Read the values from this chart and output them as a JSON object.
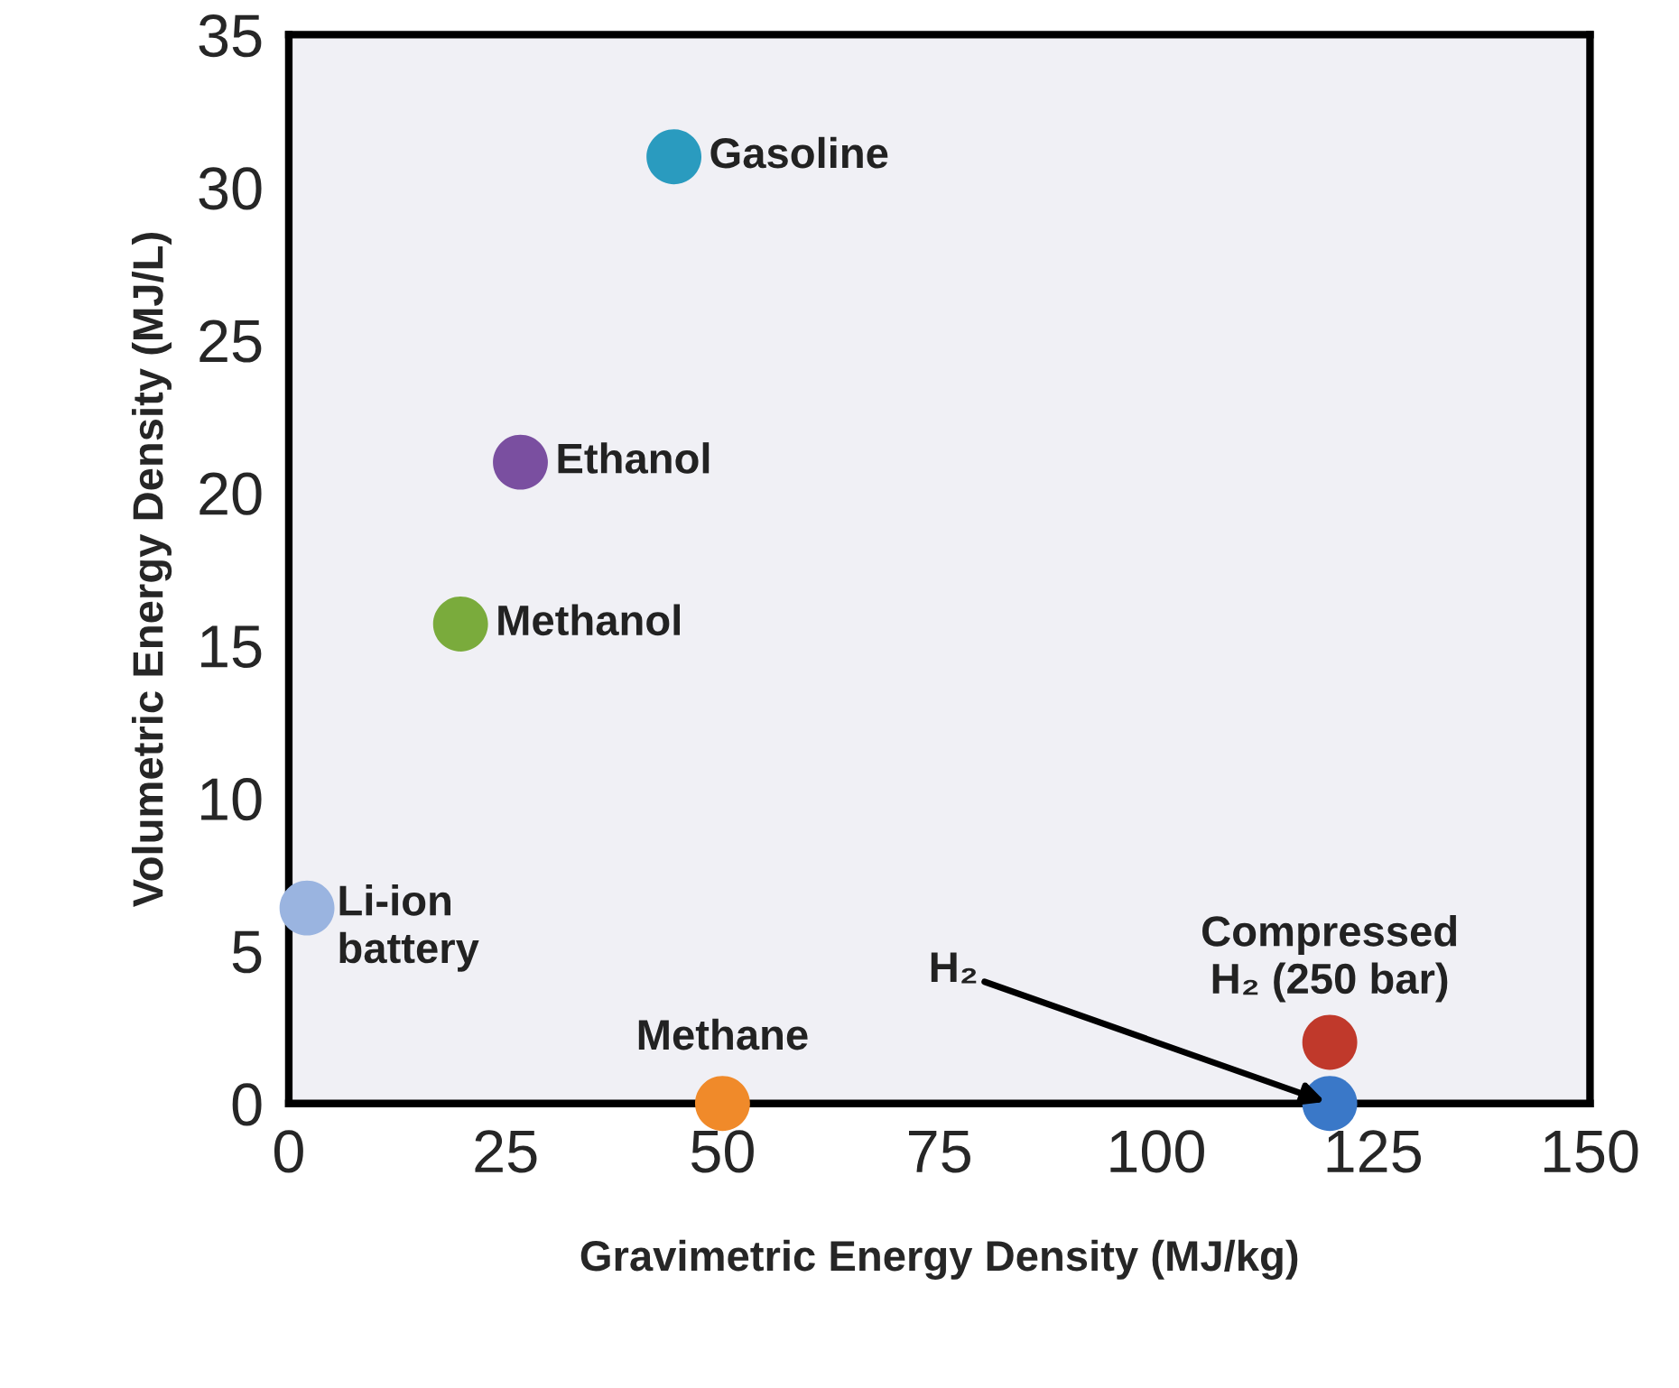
{
  "chart_data": {
    "type": "scatter",
    "xlabel": "Gravimetric Energy Density (MJ/kg)",
    "ylabel": "Volumetric Energy Density (MJ/L)",
    "xlim": [
      0,
      150
    ],
    "xticks": [
      0,
      25,
      50,
      75,
      100,
      125,
      150
    ],
    "ylim": [
      0,
      35
    ],
    "yticks": [
      0,
      5,
      10,
      15,
      20,
      25,
      30,
      35
    ],
    "grid": false,
    "legend": false,
    "marker": "circle",
    "series": [
      {
        "name": "Gasoline",
        "color": "#2a9bbf",
        "x": [
          44.4
        ],
        "values": [
          31.0
        ]
      },
      {
        "name": "Ethanol",
        "color": "#7a4fa0",
        "x": [
          26.7
        ],
        "values": [
          21.0
        ]
      },
      {
        "name": "Methanol",
        "color": "#7aab3c",
        "x": [
          19.8
        ],
        "values": [
          15.7
        ]
      },
      {
        "name": "Li-ion\nbattery",
        "color": "#9ab4e0",
        "x": [
          2.1
        ],
        "values": [
          6.4
        ]
      },
      {
        "name": "Methane",
        "color": "#f08a2a",
        "x": [
          50
        ],
        "values": [
          0
        ]
      },
      {
        "name": "Compressed\nH₂ (250 bar)",
        "color": "#c0392b",
        "x": [
          120
        ],
        "values": [
          2.0
        ]
      },
      {
        "color": "#3a78c8",
        "x": [
          120
        ],
        "values": [
          0
        ]
      }
    ],
    "annotations": [
      {
        "text": "H₂",
        "x": 120,
        "y": 0
      }
    ]
  }
}
